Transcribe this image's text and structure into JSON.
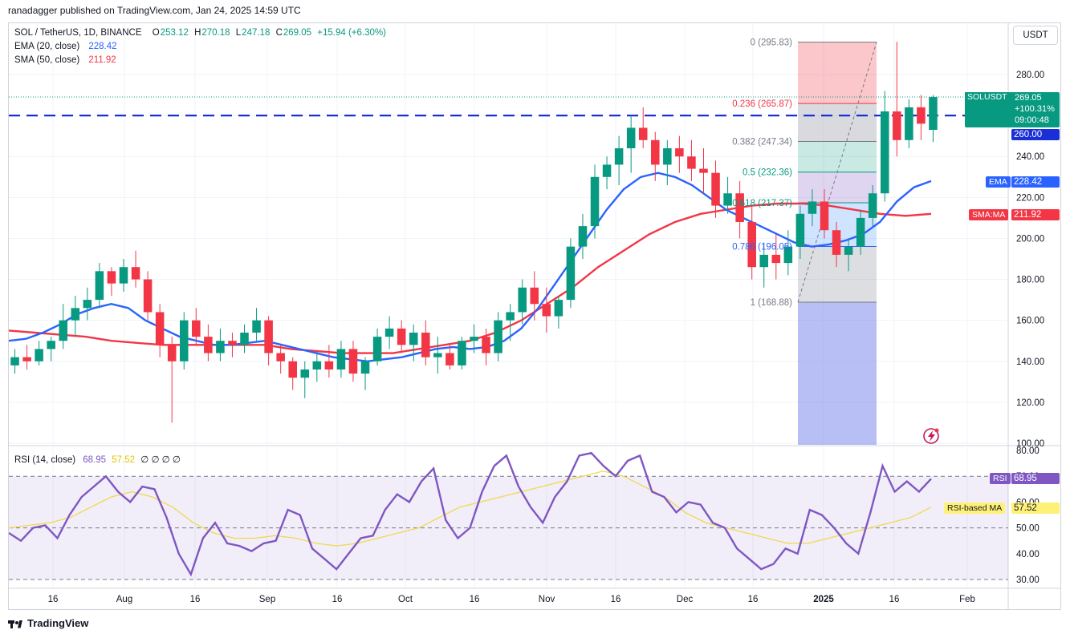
{
  "header": {
    "publisher": "ranadagger published on TradingView.com, Jan 24, 2025 14:59 UTC"
  },
  "legend": {
    "symbol": "SOL / TetherUS, 1D, BINANCE",
    "ohlc": {
      "O_label": "O",
      "O": "253.12",
      "H_label": "H",
      "H": "270.18",
      "L_label": "L",
      "L": "247.18",
      "C_label": "C",
      "C": "269.05",
      "change": "+15.94 (+6.30%)"
    },
    "ema_label": "EMA (20, close)",
    "ema_value": "228.42",
    "sma_label": "SMA (50, close)",
    "sma_value": "211.92",
    "rsi_label": "RSI (14, close)",
    "rsi_value": "68.95",
    "rsi_ma_value": "57.52",
    "rsi_extra": "∅ ∅ ∅ ∅"
  },
  "currency": "USDT",
  "badges": {
    "symbol": "SOLUSDT",
    "price": "269.05",
    "pct": "+100.31%",
    "countdown": "09:00:48",
    "level": "260.00",
    "ema": "EMA",
    "ema_value": "228.42",
    "sma": "SMA:MA",
    "sma_value": "211.92",
    "rsi": "RSI",
    "rsi_value": "68.95",
    "rsi_ma": "RSI-based MA",
    "rsi_ma_value": "57.52"
  },
  "colors": {
    "up": "#089981",
    "down": "#f23645",
    "ema": "#2962ff",
    "sma": "#f23645",
    "rsi": "#7e57c2",
    "rsi_ma": "#f0d84e",
    "level": "#1b2fd6",
    "brand": "#131722"
  },
  "footer": {
    "brand": "TradingView"
  },
  "chart_data": [
    {
      "type": "candlestick",
      "title": "SOL / TetherUS, 1D, BINANCE",
      "y_axis_ticks": [
        "280.00",
        "260.00",
        "240.00",
        "220.00",
        "200.00",
        "180.00",
        "160.00",
        "140.00",
        "120.00",
        "100.00"
      ],
      "ylim": [
        100,
        300
      ],
      "x_axis_ticks": [
        "16",
        "Aug",
        "16",
        "Sep",
        "16",
        "Oct",
        "16",
        "Nov",
        "16",
        "Dec",
        "16",
        "2025",
        "16",
        "Feb"
      ],
      "horizontal_level": 260.0,
      "last_close": 269.05,
      "fib_retracement": {
        "levels": [
          {
            "ratio": "0",
            "price": "295.83",
            "label": "0 (295.83)"
          },
          {
            "ratio": "0.236",
            "price": "265.87",
            "label": "0.236 (265.87)"
          },
          {
            "ratio": "0.382",
            "price": "247.34",
            "label": "0.382 (247.34)"
          },
          {
            "ratio": "0.5",
            "price": "232.36",
            "label": "0.5 (232.36)"
          },
          {
            "ratio": "0.618",
            "price": "217.37",
            "label": "0.618 (217.37)"
          },
          {
            "ratio": "0.786",
            "price": "196.05",
            "label": "0.786 (196.05)"
          },
          {
            "ratio": "1",
            "price": "168.88",
            "label": "1 (168.88)"
          }
        ]
      },
      "ohlc": [
        [
          138,
          146,
          134,
          142
        ],
        [
          142,
          148,
          136,
          140
        ],
        [
          140,
          150,
          138,
          146
        ],
        [
          146,
          152,
          140,
          150
        ],
        [
          150,
          168,
          146,
          160
        ],
        [
          160,
          172,
          152,
          166
        ],
        [
          166,
          176,
          160,
          170
        ],
        [
          170,
          188,
          166,
          184
        ],
        [
          184,
          186,
          172,
          178
        ],
        [
          178,
          190,
          174,
          186
        ],
        [
          186,
          194,
          176,
          180
        ],
        [
          180,
          184,
          160,
          164
        ],
        [
          164,
          168,
          142,
          148
        ],
        [
          148,
          152,
          110,
          140
        ],
        [
          140,
          164,
          136,
          160
        ],
        [
          160,
          166,
          148,
          152
        ],
        [
          152,
          158,
          140,
          144
        ],
        [
          144,
          156,
          140,
          150
        ],
        [
          150,
          154,
          142,
          148
        ],
        [
          148,
          158,
          144,
          154
        ],
        [
          154,
          166,
          150,
          160
        ],
        [
          160,
          162,
          138,
          144
        ],
        [
          144,
          148,
          134,
          140
        ],
        [
          140,
          142,
          126,
          132
        ],
        [
          132,
          140,
          122,
          136
        ],
        [
          136,
          144,
          130,
          140
        ],
        [
          140,
          148,
          132,
          136
        ],
        [
          136,
          150,
          132,
          146
        ],
        [
          146,
          150,
          130,
          134
        ],
        [
          134,
          142,
          126,
          140
        ],
        [
          140,
          156,
          138,
          152
        ],
        [
          152,
          162,
          146,
          156
        ],
        [
          156,
          160,
          144,
          148
        ],
        [
          148,
          158,
          140,
          154
        ],
        [
          154,
          160,
          138,
          142
        ],
        [
          142,
          152,
          134,
          144
        ],
        [
          144,
          148,
          136,
          138
        ],
        [
          138,
          152,
          136,
          150
        ],
        [
          150,
          158,
          144,
          152
        ],
        [
          152,
          156,
          138,
          144
        ],
        [
          144,
          164,
          140,
          160
        ],
        [
          160,
          168,
          150,
          164
        ],
        [
          164,
          180,
          158,
          176
        ],
        [
          176,
          184,
          160,
          168
        ],
        [
          168,
          176,
          154,
          162
        ],
        [
          162,
          172,
          156,
          170
        ],
        [
          170,
          200,
          166,
          196
        ],
        [
          196,
          212,
          190,
          206
        ],
        [
          206,
          236,
          200,
          230
        ],
        [
          230,
          240,
          224,
          236
        ],
        [
          236,
          250,
          226,
          244
        ],
        [
          244,
          260,
          232,
          254
        ],
        [
          254,
          264,
          244,
          248
        ],
        [
          248,
          252,
          228,
          236
        ],
        [
          236,
          248,
          226,
          244
        ],
        [
          244,
          250,
          232,
          240
        ],
        [
          240,
          248,
          228,
          234
        ],
        [
          234,
          244,
          222,
          232
        ],
        [
          232,
          238,
          210,
          216
        ],
        [
          216,
          230,
          212,
          222
        ],
        [
          222,
          228,
          200,
          208
        ],
        [
          208,
          216,
          180,
          186
        ],
        [
          186,
          198,
          176,
          192
        ],
        [
          192,
          202,
          180,
          188
        ],
        [
          188,
          204,
          182,
          196
        ],
        [
          196,
          216,
          190,
          212
        ],
        [
          212,
          224,
          206,
          218
        ],
        [
          218,
          224,
          200,
          204
        ],
        [
          204,
          208,
          186,
          192
        ],
        [
          192,
          200,
          184,
          196
        ],
        [
          196,
          214,
          192,
          210
        ],
        [
          210,
          226,
          206,
          222
        ],
        [
          222,
          272,
          218,
          262
        ],
        [
          262,
          296,
          240,
          248
        ],
        [
          248,
          268,
          244,
          264
        ],
        [
          264,
          270,
          248,
          256
        ],
        [
          253,
          270,
          247,
          269
        ]
      ],
      "ema20": [
        150,
        151,
        154,
        158,
        163,
        166,
        168,
        166,
        160,
        156,
        152,
        150,
        148,
        148,
        149,
        150,
        148,
        146,
        144,
        142,
        141,
        140,
        141,
        142,
        144,
        146,
        147,
        146,
        147,
        150,
        156,
        166,
        178,
        190,
        202,
        214,
        224,
        230,
        232,
        230,
        226,
        220,
        214,
        210,
        206,
        202,
        198,
        196,
        197,
        199,
        202,
        208,
        218,
        225,
        228
      ],
      "sma50": [
        155,
        154,
        153,
        152,
        150,
        149,
        148,
        148,
        148,
        148,
        148,
        146,
        145,
        144,
        144,
        144,
        146,
        148,
        150,
        154,
        160,
        168,
        176,
        186,
        194,
        202,
        208,
        212,
        214,
        216,
        217,
        217,
        216,
        214,
        212,
        211,
        212
      ],
      "candle_count": 77
    },
    {
      "type": "line",
      "title": "RSI (14, close)",
      "y_axis_ticks": [
        "80.00",
        "70.00",
        "60.00",
        "50.00",
        "40.00",
        "30.00"
      ],
      "ylim": [
        28,
        82
      ],
      "overbought": 70,
      "oversold": 30,
      "series": [
        {
          "name": "RSI",
          "values": [
            48,
            45,
            50,
            51,
            46,
            55,
            62,
            66,
            70,
            64,
            60,
            66,
            65,
            54,
            40,
            32,
            46,
            52,
            44,
            43,
            41,
            44,
            45,
            57,
            55,
            42,
            38,
            34,
            40,
            46,
            47,
            57,
            63,
            60,
            68,
            73,
            53,
            46,
            50,
            64,
            74,
            78,
            66,
            58,
            52,
            62,
            68,
            78,
            79,
            74,
            70,
            76,
            78,
            64,
            62,
            56,
            60,
            59,
            52,
            50,
            42,
            38,
            34,
            36,
            42,
            40,
            57,
            55,
            50,
            44,
            40,
            56,
            74,
            64,
            68,
            64,
            69
          ]
        },
        {
          "name": "RSI-based MA",
          "values": [
            50,
            51,
            52,
            54,
            58,
            62,
            64,
            62,
            58,
            52,
            48,
            46,
            46,
            47,
            46,
            44,
            43,
            44,
            46,
            48,
            50,
            54,
            58,
            60,
            62,
            64,
            66,
            68,
            70,
            72,
            70,
            66,
            62,
            56,
            52,
            50,
            48,
            46,
            44,
            44,
            46,
            48,
            50,
            52,
            54,
            58
          ]
        }
      ]
    }
  ]
}
